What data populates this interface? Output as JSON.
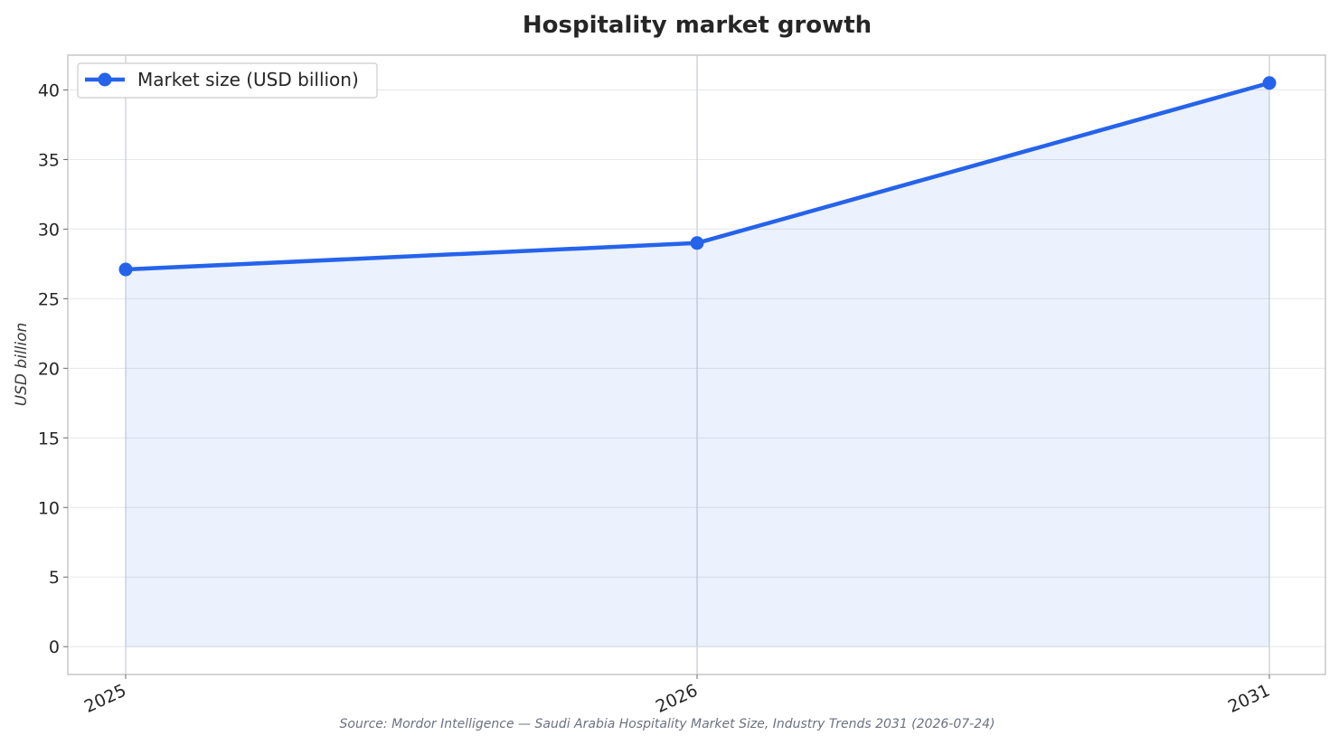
{
  "chart_data": {
    "type": "area",
    "title": "Hospitality market growth",
    "xlabel": "",
    "ylabel": "USD billion",
    "categories": [
      "2025",
      "2026",
      "2031"
    ],
    "series": [
      {
        "name": "Market size (USD billion)",
        "values": [
          27.1,
          29.0,
          40.5
        ]
      }
    ],
    "yticks": [
      "0",
      "5",
      "10",
      "15",
      "20",
      "25",
      "30",
      "35",
      "40"
    ],
    "ylim": [
      -2,
      42.5
    ],
    "grid": true,
    "legend_position": "top-left",
    "source": "Source: Mordor Intelligence — Saudi Arabia Hospitality Market Size, Industry Trends 2031 (2026-07-24)",
    "colors": {
      "line": "#2563eb",
      "fill": "#2563eb",
      "grid": "#e5e7eb",
      "frame": "#c7c7c7"
    }
  }
}
